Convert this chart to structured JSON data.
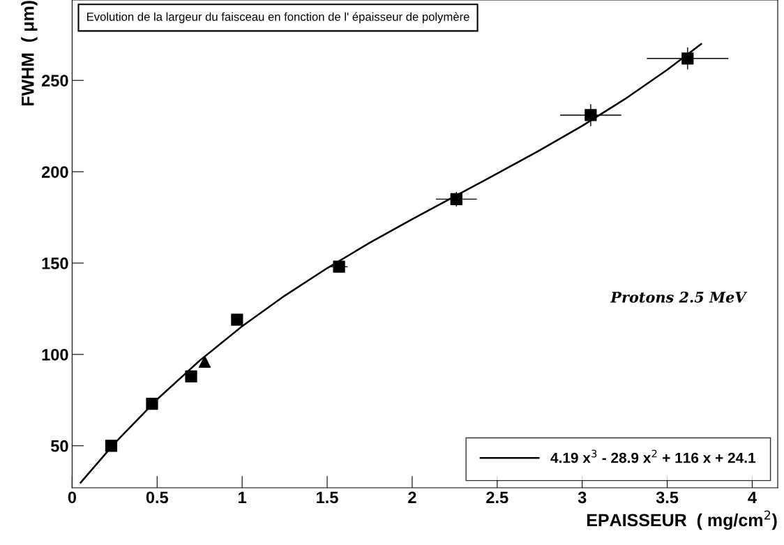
{
  "chart_data": {
    "type": "scatter",
    "title": "Evolution de la largeur du faisceau en fonction de l' épaisseur de polymère",
    "xlabel": "EPAISSEUR  ( mg/cm$^{2}$)",
    "ylabel": "FWHM  ( μm)",
    "annotations": [
      "Protons 2.5 MeV"
    ],
    "xlim": [
      0,
      4.15
    ],
    "ylim": [
      27,
      294
    ],
    "xticks": [
      0,
      0.5,
      1,
      1.5,
      2,
      2.5,
      3,
      3.5,
      4
    ],
    "yticks": [
      50,
      100,
      150,
      200,
      250
    ],
    "grid": false,
    "legend": "bottom right",
    "series": [
      {
        "marker": "square",
        "color": "#000000",
        "x": [
          0.23,
          0.47,
          0.7,
          0.97,
          1.57,
          2.26,
          3.05,
          3.62
        ],
        "values": [
          50,
          73,
          88,
          119,
          148,
          185,
          231,
          262
        ],
        "errors": [
          null,
          null,
          null,
          null,
          3,
          4,
          6,
          6
        ],
        "xerrors": [
          null,
          null,
          null,
          null,
          0.05,
          0.12,
          0.18,
          0.24
        ]
      },
      {
        "marker": "triangle",
        "color": "#000000",
        "x": [
          0.78
        ],
        "values": [
          96
        ]
      },
      {
        "type": "line",
        "name": "4.19 x$^{3}$ - 28.9 x$^{2}$ + 116 x + 24.1",
        "color": "#000000",
        "line_style": "solid",
        "marker": "none",
        "x": [
          0.05,
          0.25,
          0.5,
          0.75,
          1.0,
          1.25,
          1.5,
          1.75,
          2.0,
          2.25,
          2.5,
          2.75,
          3.0,
          3.25,
          3.5,
          3.7
        ],
        "values": [
          29.8,
          51.4,
          75.4,
          96.6,
          115.4,
          132.1,
          147.2,
          161.1,
          174.0,
          186.5,
          199.0,
          211.7,
          225.1,
          239.7,
          255.8,
          269.9
        ]
      }
    ]
  }
}
